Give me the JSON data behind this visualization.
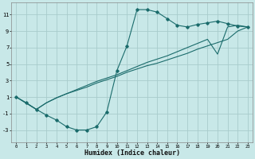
{
  "xlabel": "Humidex (Indice chaleur)",
  "xlim": [
    -0.5,
    23.5
  ],
  "ylim": [
    -4.5,
    12.5
  ],
  "xticks": [
    0,
    1,
    2,
    3,
    4,
    5,
    6,
    7,
    8,
    9,
    10,
    11,
    12,
    13,
    14,
    15,
    16,
    17,
    18,
    19,
    20,
    21,
    22,
    23
  ],
  "yticks": [
    -3,
    -1,
    1,
    3,
    5,
    7,
    9,
    11
  ],
  "bg_color": "#c8e8e8",
  "grid_color": "#a8cccc",
  "line_color": "#1a6b6b",
  "line1_x": [
    0,
    1,
    2,
    3,
    4,
    5,
    6,
    7,
    8,
    9,
    10,
    11,
    12,
    13,
    14,
    15,
    16,
    17,
    18,
    19,
    20,
    21,
    22,
    23
  ],
  "line1_y": [
    1.0,
    0.3,
    -0.5,
    -1.2,
    -1.8,
    -2.6,
    -3.0,
    -3.0,
    -2.6,
    -0.8,
    4.2,
    7.2,
    11.6,
    11.6,
    11.3,
    10.5,
    9.7,
    9.5,
    9.8,
    10.0,
    10.2,
    9.9,
    9.6,
    9.5
  ],
  "line2_x": [
    0,
    2,
    3,
    4,
    5,
    6,
    7,
    8,
    9,
    10,
    11,
    12,
    13,
    14,
    15,
    16,
    17,
    18,
    19,
    20,
    21,
    22,
    23
  ],
  "line2_y": [
    1.0,
    -0.5,
    0.3,
    0.9,
    1.4,
    1.8,
    2.2,
    2.7,
    3.1,
    3.5,
    4.0,
    4.4,
    4.8,
    5.1,
    5.5,
    5.9,
    6.3,
    6.8,
    7.2,
    7.6,
    8.0,
    9.0,
    9.5
  ],
  "line3_x": [
    0,
    2,
    3,
    4,
    5,
    6,
    7,
    8,
    9,
    10,
    11,
    12,
    13,
    14,
    15,
    16,
    17,
    18,
    19,
    20,
    21,
    22,
    23
  ],
  "line3_y": [
    1.0,
    -0.5,
    0.3,
    0.9,
    1.4,
    1.9,
    2.4,
    2.9,
    3.3,
    3.7,
    4.2,
    4.7,
    5.2,
    5.6,
    6.0,
    6.5,
    7.0,
    7.5,
    8.0,
    6.2,
    9.5,
    9.7,
    9.5
  ]
}
